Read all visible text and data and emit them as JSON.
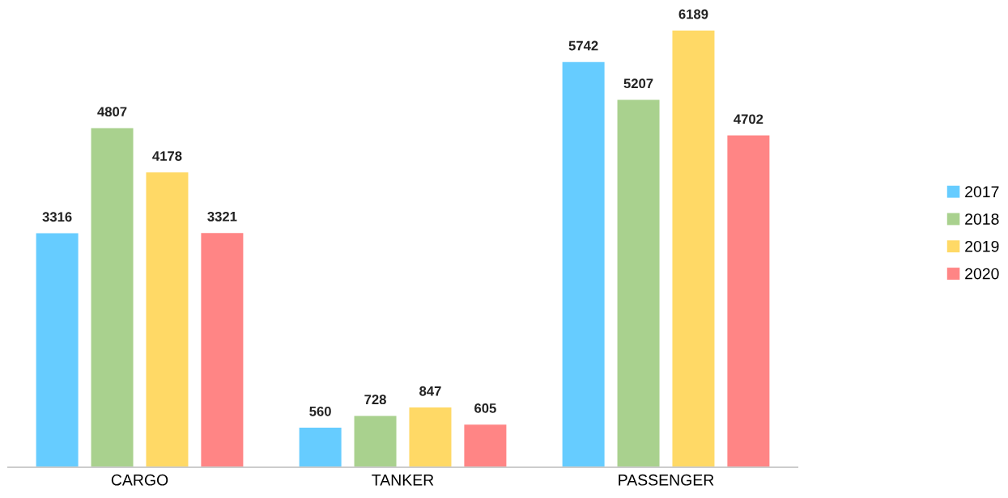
{
  "chart_data": {
    "type": "bar",
    "categories": [
      "CARGO",
      "TANKER",
      "PASSENGER"
    ],
    "series": [
      {
        "name": "2017",
        "color": "#66ccff",
        "values": [
          3316,
          560,
          5742
        ]
      },
      {
        "name": "2018",
        "color": "#a9d18e",
        "values": [
          4807,
          728,
          5207
        ]
      },
      {
        "name": "2019",
        "color": "#ffd966",
        "values": [
          4178,
          847,
          6189
        ]
      },
      {
        "name": "2020",
        "color": "#ff8585",
        "values": [
          3321,
          605,
          4702
        ]
      }
    ],
    "tick_labels": "x",
    "data_labels": true,
    "legend": "right",
    "grid": false
  }
}
